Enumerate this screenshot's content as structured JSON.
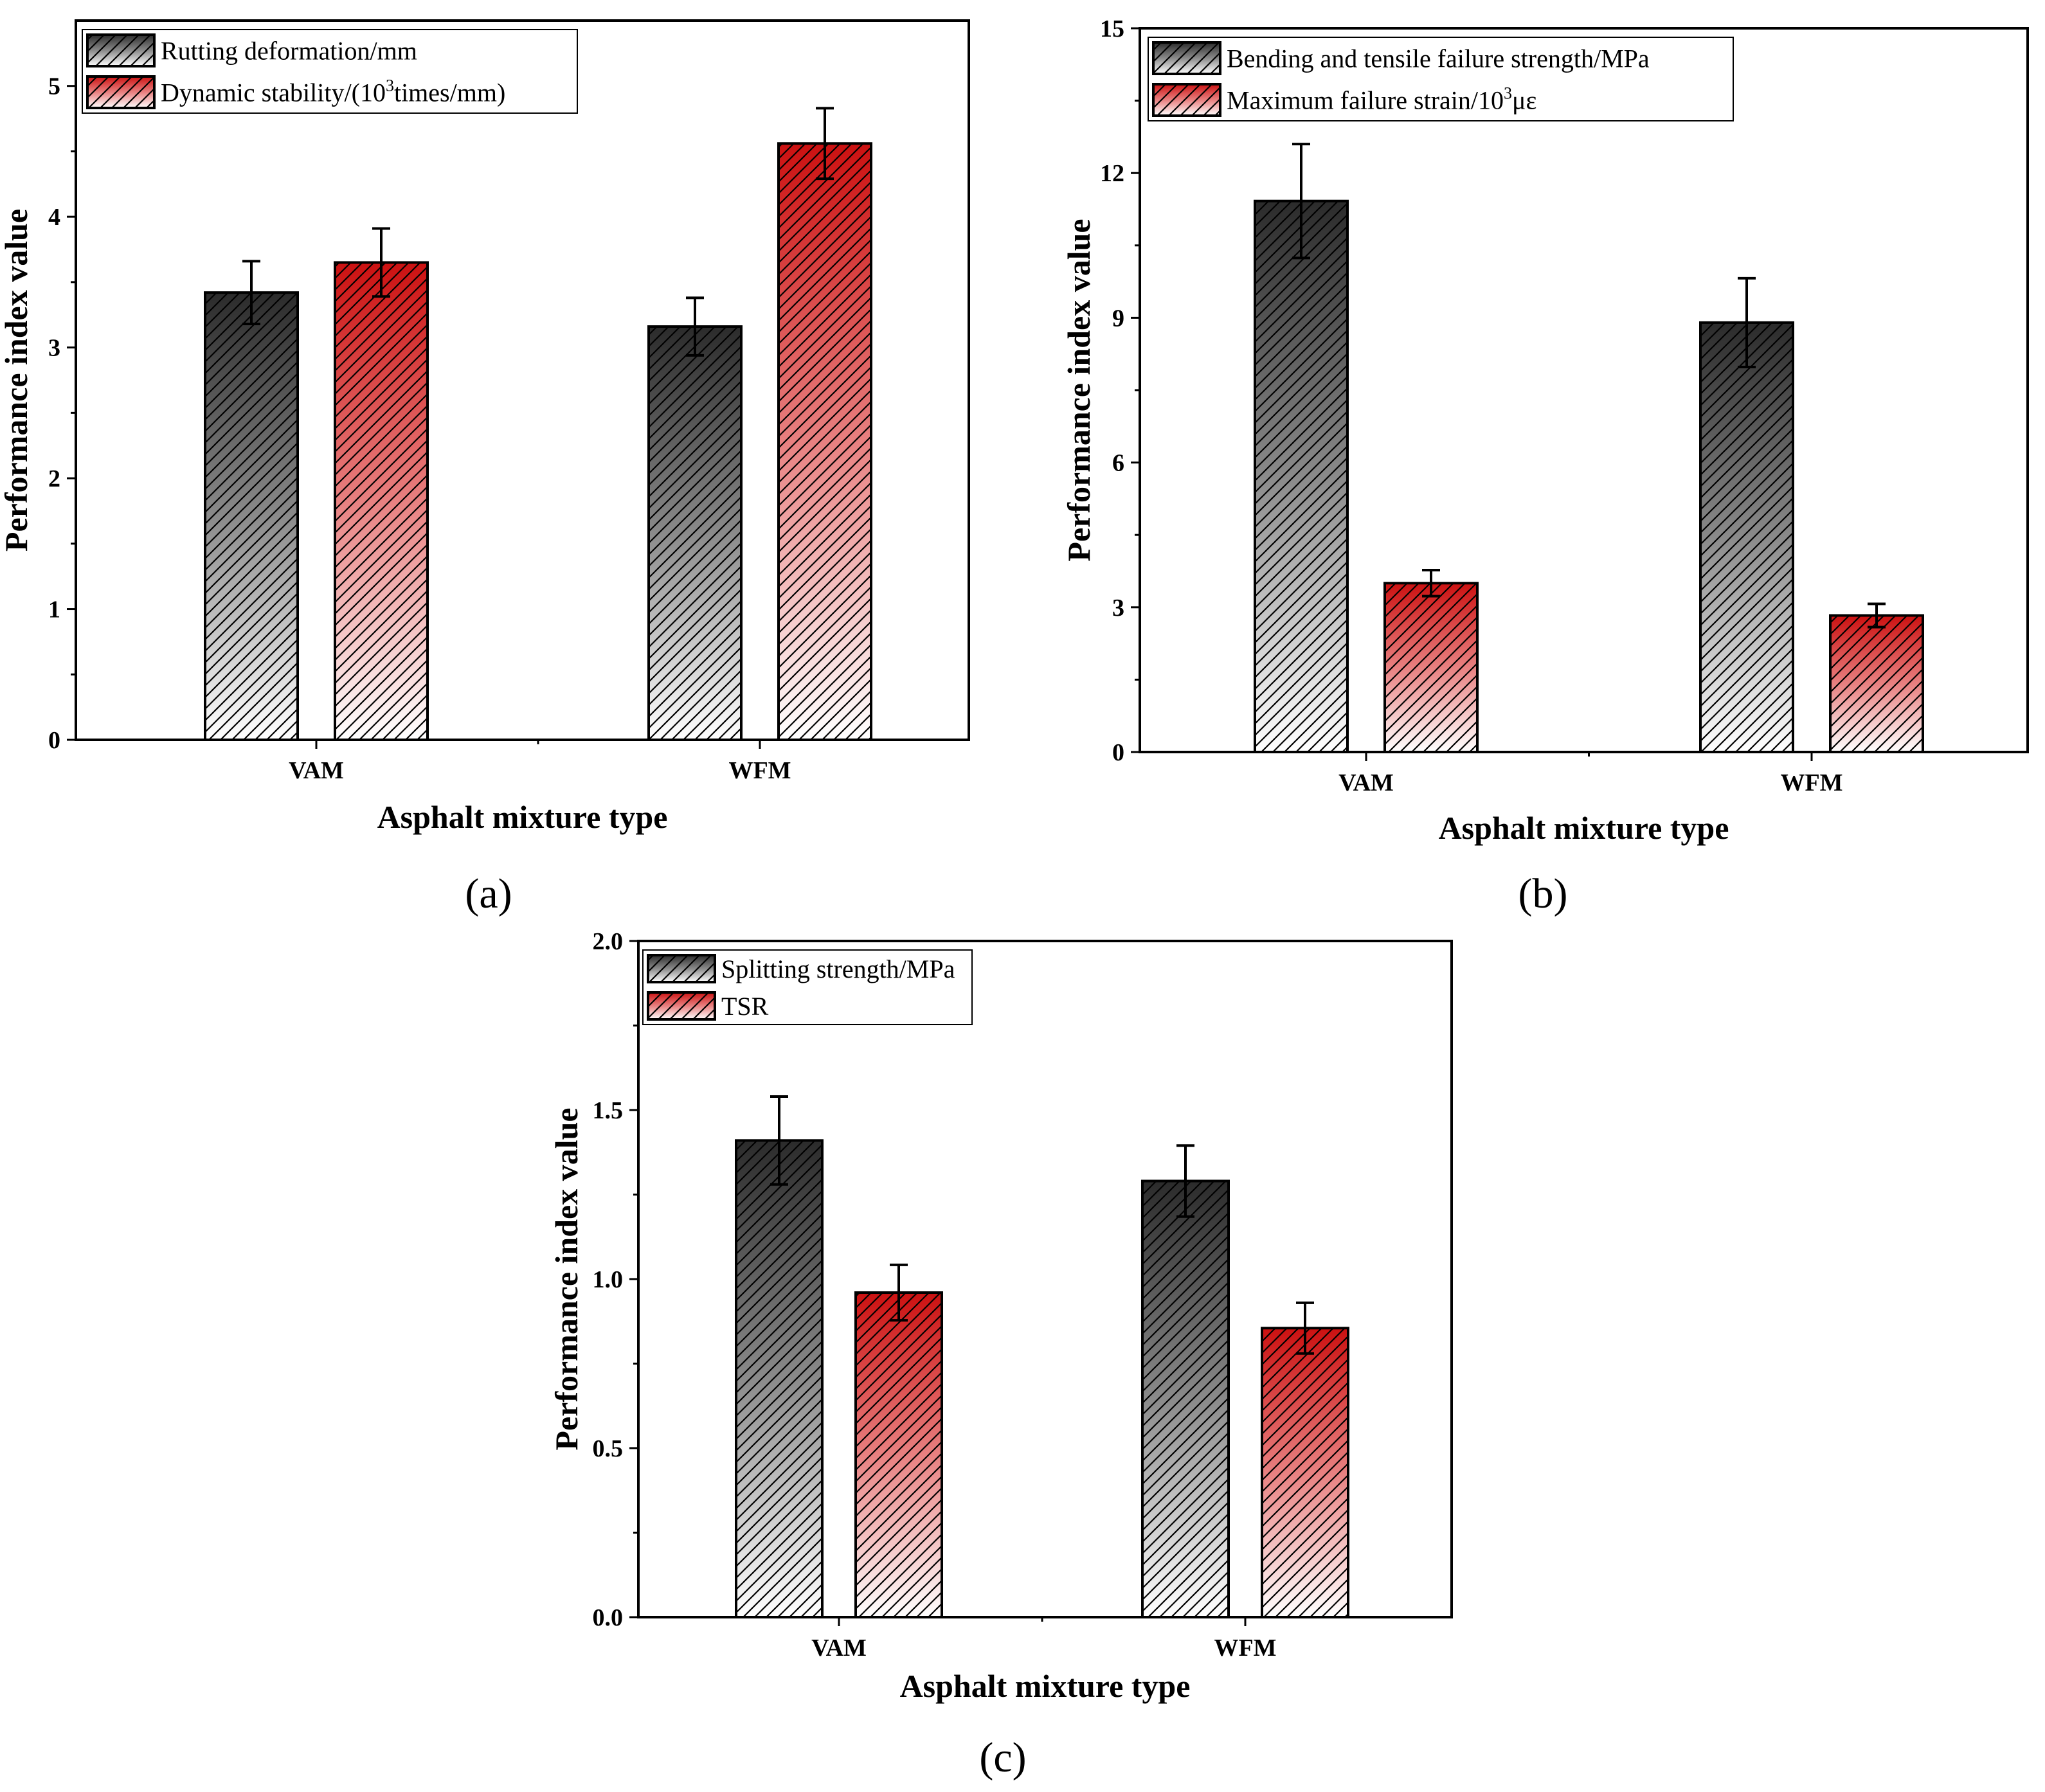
{
  "chart_data": [
    {
      "type": "bar",
      "panel": "(a)",
      "categories": [
        "VAM",
        "WFM"
      ],
      "series": [
        {
          "name": "Rutting deformation/mm",
          "values": [
            3.42,
            3.16
          ],
          "errors": [
            0.24,
            0.22
          ],
          "color": "#333333"
        },
        {
          "name": "Dynamic stability/(10^3times/mm)",
          "legend_main": "Dynamic stability/(10",
          "legend_sup": "3",
          "legend_tail": "times/mm)",
          "values": [
            3.65,
            4.56
          ],
          "errors": [
            0.26,
            0.27
          ],
          "color": "#cc1111"
        }
      ],
      "xlabel": "Asphalt mixture type",
      "ylabel": "Performance index value",
      "ylim": [
        0,
        5.5
      ],
      "yticks": [
        0,
        1,
        2,
        3,
        4,
        5
      ],
      "ytick_labels": [
        "0",
        "1",
        "2",
        "3",
        "4",
        "5"
      ],
      "legend_position": "top-left"
    },
    {
      "type": "bar",
      "panel": "(b)",
      "categories": [
        "VAM",
        "WFM"
      ],
      "series": [
        {
          "name": "Bending and tensile failure strength/MPa",
          "values": [
            11.42,
            8.9
          ],
          "errors": [
            1.18,
            0.92
          ],
          "color": "#333333"
        },
        {
          "name": "Maximum failure strain/10^3με",
          "legend_main": "Maximum failure strain/10",
          "legend_sup": "3",
          "legend_tail": "με",
          "values": [
            3.5,
            2.83
          ],
          "errors": [
            0.27,
            0.24
          ],
          "color": "#cc1111"
        }
      ],
      "xlabel": "Asphalt mixture type",
      "ylabel": "Performance index value",
      "ylim": [
        0,
        15
      ],
      "yticks": [
        0,
        3,
        6,
        9,
        12,
        15
      ],
      "ytick_labels": [
        "0",
        "3",
        "6",
        "9",
        "12",
        "15"
      ],
      "legend_position": "top-left"
    },
    {
      "type": "bar",
      "panel": "(c)",
      "categories": [
        "VAM",
        "WFM"
      ],
      "series": [
        {
          "name": "Splitting strength/MPa",
          "values": [
            1.41,
            1.29
          ],
          "errors": [
            0.13,
            0.105
          ],
          "color": "#333333"
        },
        {
          "name": "TSR",
          "values": [
            0.96,
            0.855
          ],
          "errors": [
            0.082,
            0.075
          ],
          "color": "#cc1111"
        }
      ],
      "xlabel": "Asphalt mixture type",
      "ylabel": "Performance index value",
      "ylim": [
        0,
        2.0
      ],
      "yticks": [
        0,
        0.5,
        1.0,
        1.5,
        2.0
      ],
      "ytick_labels": [
        "0.0",
        "0.5",
        "1.0",
        "1.5",
        "2.0"
      ],
      "legend_position": "top-left"
    }
  ]
}
